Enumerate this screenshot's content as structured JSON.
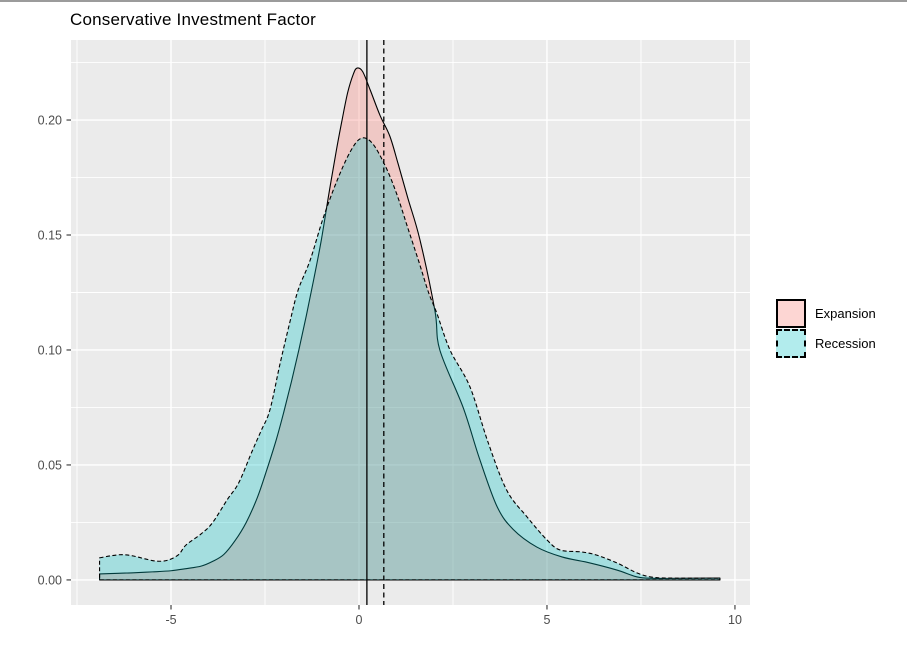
{
  "window": {
    "top_border_color": "#9b9b9b"
  },
  "chart_data": {
    "type": "area",
    "subtype": "density",
    "title": "Conservative Investment Factor",
    "xlabel": "",
    "ylabel": "",
    "xlim": [
      -7.66,
      10.4
    ],
    "ylim": [
      -0.0109,
      0.2348
    ],
    "x_major_ticks": [
      -5,
      0,
      5,
      10
    ],
    "x_tick_labels": [
      "-5",
      "0",
      "5",
      "10"
    ],
    "x_minor_ticks": [
      -7.5,
      -2.5,
      2.5,
      7.5
    ],
    "y_major_ticks": [
      0,
      0.05,
      0.1,
      0.15,
      0.2
    ],
    "y_tick_labels": [
      "0.00",
      "0.05",
      "0.10",
      "0.15",
      "0.20"
    ],
    "y_minor_ticks": [
      0.025,
      0.075,
      0.125,
      0.175,
      0.225
    ],
    "grid": true,
    "panel_background": "#EBEBEB",
    "gridline_color": "#FFFFFF",
    "axis_text_color": "#4D4D4D",
    "tick_mark_color": "#333333",
    "legend_position": "right",
    "vlines": [
      {
        "x": 0.21,
        "linetype": "solid",
        "color": "#000000"
      },
      {
        "x": 0.66,
        "linetype": "dashed",
        "color": "#000000"
      }
    ],
    "series": [
      {
        "name": "Expansion",
        "fill": "#F8766D",
        "fill_opacity": 0.3,
        "line_color": "#000000",
        "linetype": "solid",
        "points": [
          [
            -6.9,
            0.0026
          ],
          [
            -6.4,
            0.0029
          ],
          [
            -6.0,
            0.0031
          ],
          [
            -5.5,
            0.0035
          ],
          [
            -5.0,
            0.004
          ],
          [
            -4.6,
            0.0049
          ],
          [
            -4.2,
            0.006
          ],
          [
            -3.9,
            0.008
          ],
          [
            -3.6,
            0.011
          ],
          [
            -3.3,
            0.017
          ],
          [
            -3.0,
            0.025
          ],
          [
            -2.7,
            0.036
          ],
          [
            -2.45,
            0.048
          ],
          [
            -2.2,
            0.061
          ],
          [
            -2.0,
            0.073
          ],
          [
            -1.8,
            0.086
          ],
          [
            -1.6,
            0.1
          ],
          [
            -1.4,
            0.115
          ],
          [
            -1.2,
            0.131
          ],
          [
            -1.0,
            0.148
          ],
          [
            -0.8,
            0.168
          ],
          [
            -0.6,
            0.187
          ],
          [
            -0.45,
            0.2
          ],
          [
            -0.3,
            0.212
          ],
          [
            -0.15,
            0.22
          ],
          [
            -0.05,
            0.2226
          ],
          [
            0.1,
            0.221
          ],
          [
            0.3,
            0.213
          ],
          [
            0.56,
            0.202
          ],
          [
            0.82,
            0.193
          ],
          [
            1.04,
            0.181
          ],
          [
            1.3,
            0.166
          ],
          [
            1.62,
            0.148
          ],
          [
            2.02,
            0.117
          ],
          [
            2.15,
            0.1
          ],
          [
            2.77,
            0.075
          ],
          [
            3.2,
            0.053
          ],
          [
            3.67,
            0.032
          ],
          [
            4.1,
            0.022
          ],
          [
            4.73,
            0.0143
          ],
          [
            5.4,
            0.01
          ],
          [
            6.14,
            0.0074
          ],
          [
            6.86,
            0.0043
          ],
          [
            7.4,
            0.0013
          ],
          [
            7.8,
            0.0007
          ],
          [
            8.5,
            0.0007
          ],
          [
            9.6,
            0.0008
          ]
        ]
      },
      {
        "name": "Recession",
        "fill": "#00BFC4",
        "fill_opacity": 0.3,
        "line_color": "#000000",
        "linetype": "dashed",
        "points": [
          [
            -6.9,
            0.0096
          ],
          [
            -6.6,
            0.0105
          ],
          [
            -6.3,
            0.011
          ],
          [
            -6.0,
            0.0104
          ],
          [
            -5.7,
            0.0092
          ],
          [
            -5.4,
            0.0082
          ],
          [
            -5.1,
            0.0085
          ],
          [
            -4.8,
            0.011
          ],
          [
            -4.6,
            0.0152
          ],
          [
            -4.2,
            0.02
          ],
          [
            -3.9,
            0.0248
          ],
          [
            -3.5,
            0.035
          ],
          [
            -3.2,
            0.0422
          ],
          [
            -2.85,
            0.0557
          ],
          [
            -2.6,
            0.065
          ],
          [
            -2.37,
            0.0739
          ],
          [
            -2.1,
            0.094
          ],
          [
            -1.84,
            0.112
          ],
          [
            -1.62,
            0.126
          ],
          [
            -1.3,
            0.139
          ],
          [
            -0.96,
            0.157
          ],
          [
            -0.6,
            0.173
          ],
          [
            -0.24,
            0.186
          ],
          [
            0.05,
            0.192
          ],
          [
            0.35,
            0.19
          ],
          [
            0.7,
            0.18
          ],
          [
            1.0,
            0.168
          ],
          [
            1.3,
            0.153
          ],
          [
            1.6,
            0.138
          ],
          [
            1.85,
            0.125
          ],
          [
            2.07,
            0.116
          ],
          [
            2.42,
            0.1
          ],
          [
            2.95,
            0.084
          ],
          [
            3.43,
            0.06
          ],
          [
            3.93,
            0.039
          ],
          [
            4.47,
            0.0274
          ],
          [
            5.0,
            0.0174
          ],
          [
            5.35,
            0.013
          ],
          [
            5.9,
            0.0122
          ],
          [
            6.3,
            0.0109
          ],
          [
            6.86,
            0.0074
          ],
          [
            7.4,
            0.003
          ],
          [
            7.8,
            0.0012
          ],
          [
            8.3,
            0.0008
          ],
          [
            9.6,
            0.0008
          ]
        ]
      }
    ]
  },
  "legend": {
    "items": [
      {
        "label": "Expansion",
        "linetype": "solid"
      },
      {
        "label": "Recession",
        "linetype": "dashed"
      }
    ]
  }
}
